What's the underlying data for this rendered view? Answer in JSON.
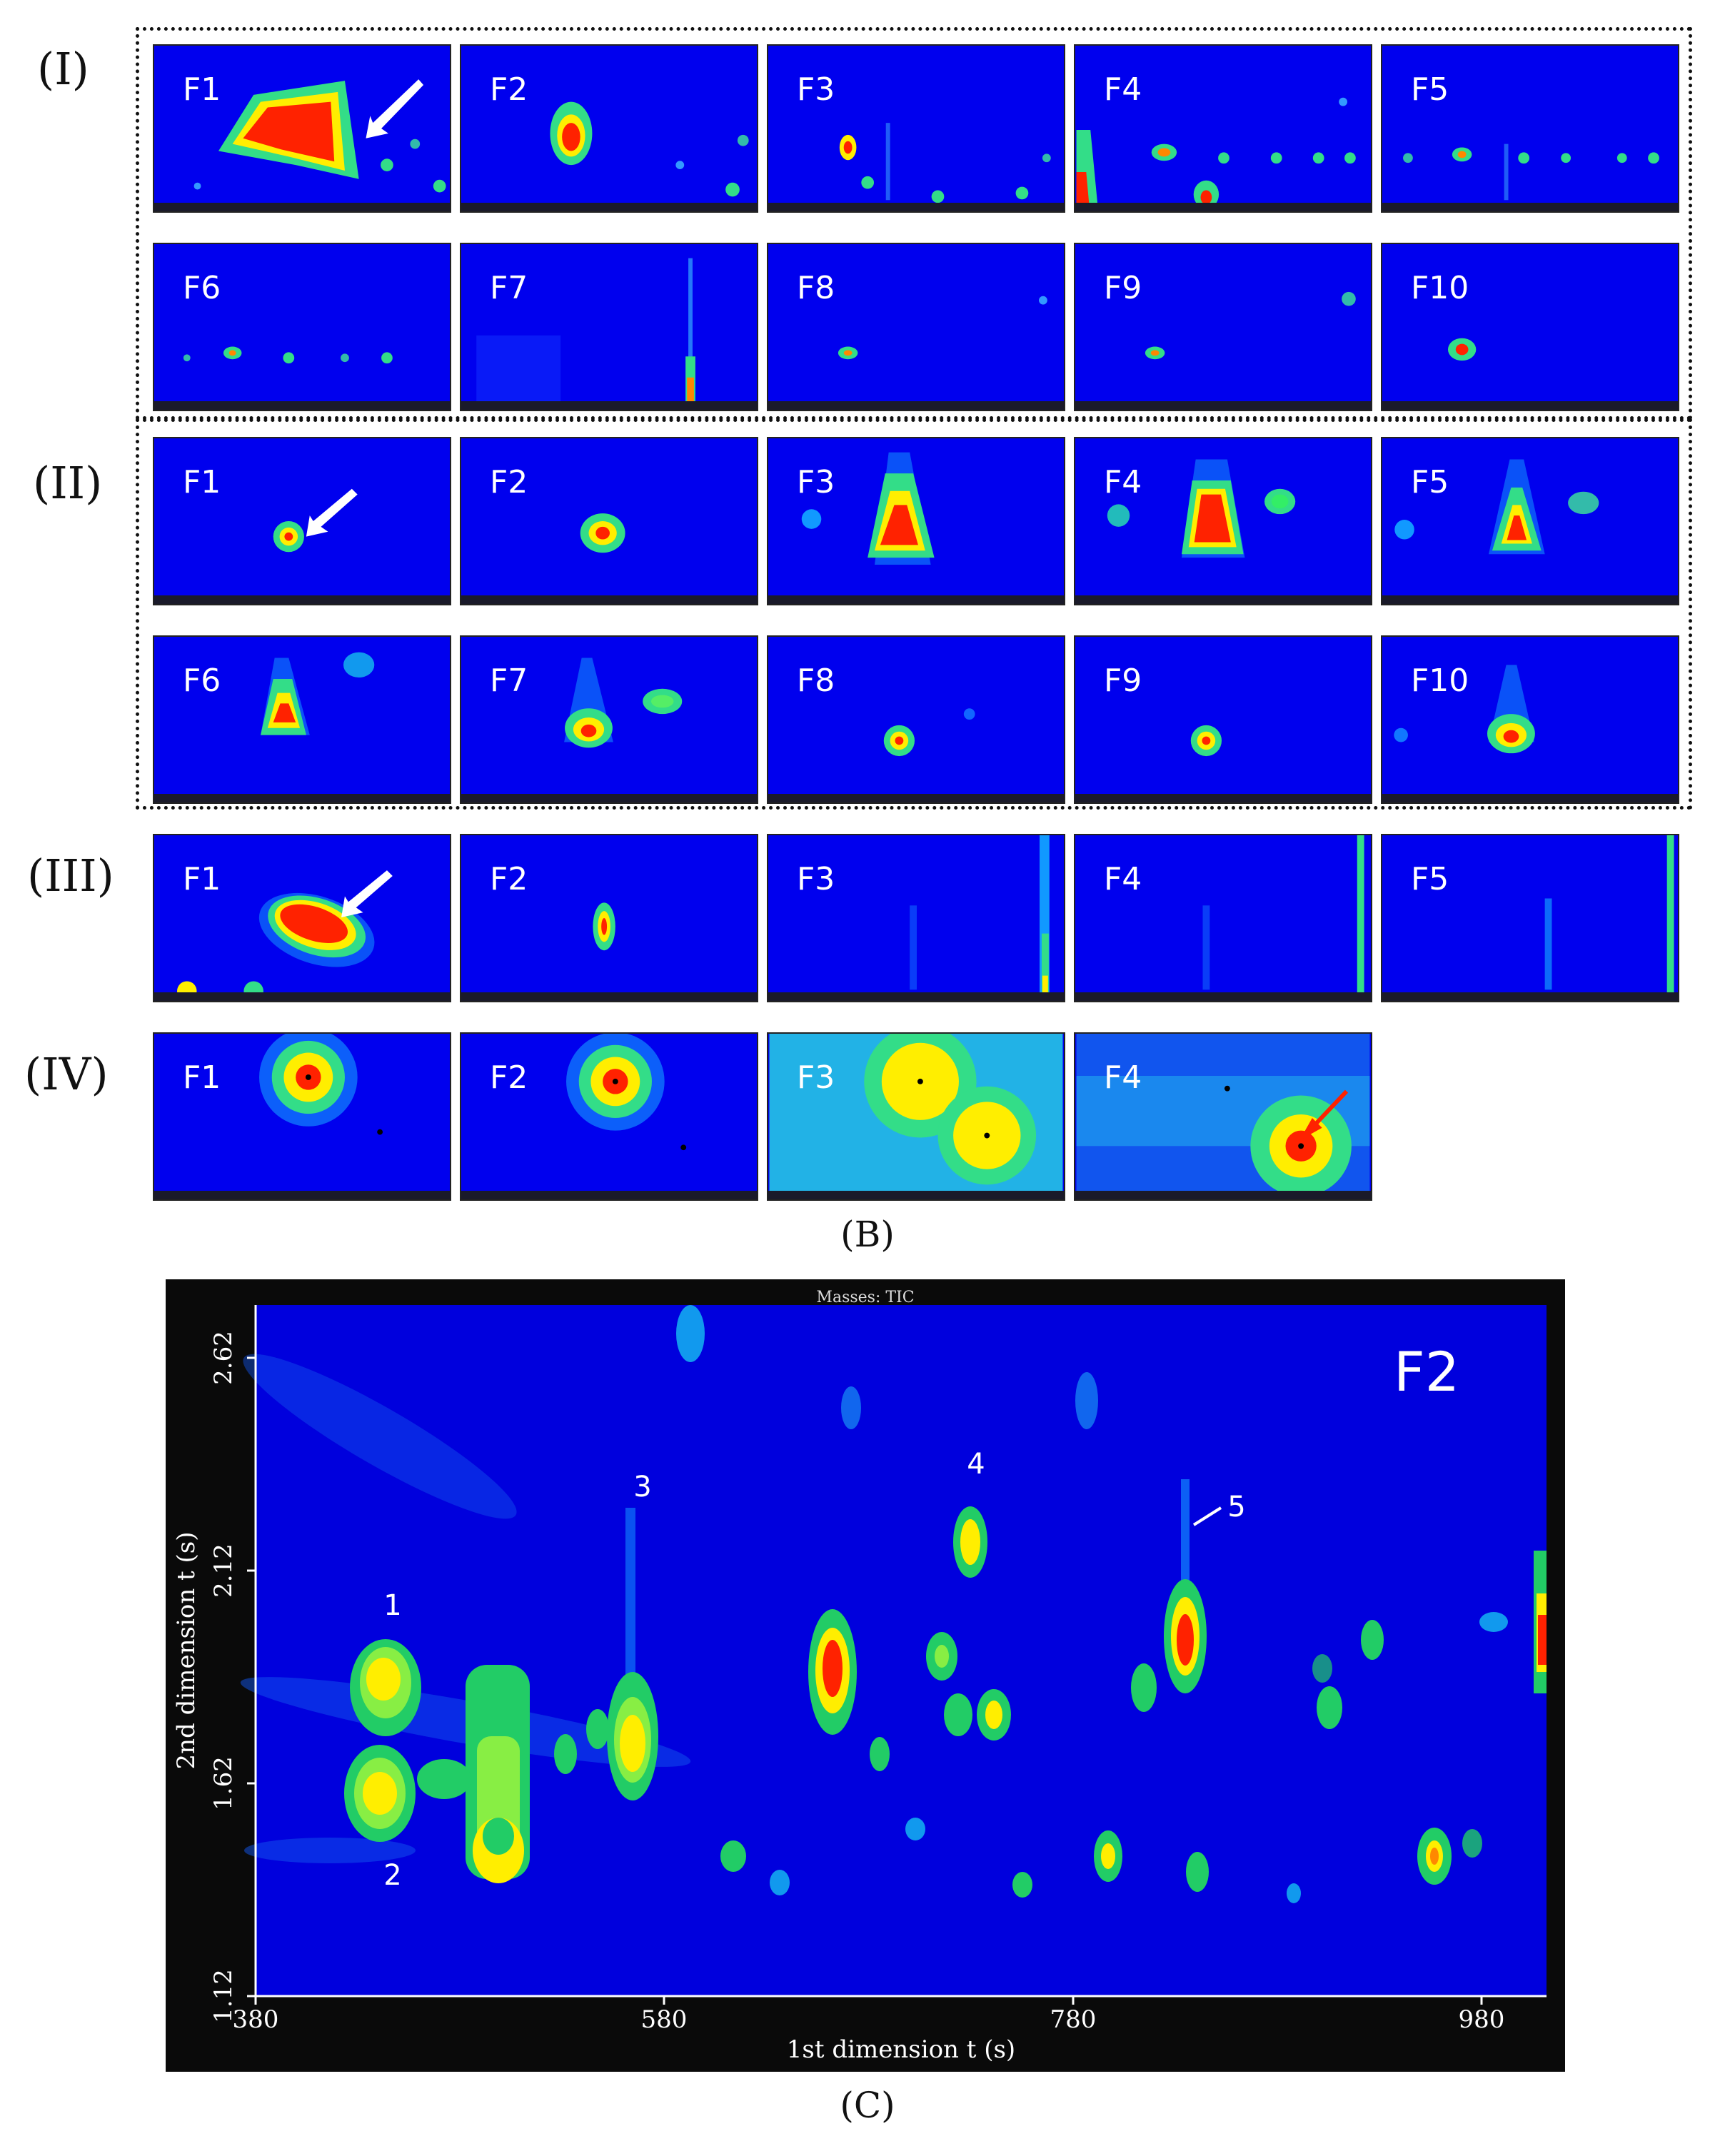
{
  "figure_B": {
    "row_labels": [
      "(I)",
      "(II)",
      "(III)",
      "(IV)"
    ],
    "rows": [
      {
        "row": "I",
        "panels": [
          "F1",
          "F2",
          "F3",
          "F4",
          "F5"
        ]
      },
      {
        "row": "I",
        "panels": [
          "F6",
          "F7",
          "F8",
          "F9",
          "F10"
        ]
      },
      {
        "row": "II",
        "panels": [
          "F1",
          "F2",
          "F3",
          "F4",
          "F5"
        ]
      },
      {
        "row": "II",
        "panels": [
          "F6",
          "F7",
          "F8",
          "F9",
          "F10"
        ]
      },
      {
        "row": "III",
        "panels": [
          "F1",
          "F2",
          "F3",
          "F4",
          "F5"
        ]
      },
      {
        "row": "IV",
        "panels": [
          "F1",
          "F2",
          "F3",
          "F4"
        ]
      }
    ],
    "caption": "(B)"
  },
  "figure_C": {
    "header": "Masses: TIC",
    "panel_label": "F2",
    "xlabel": "1st dimension t (s)",
    "ylabel": "2nd dimension t (s)",
    "x_ticks": [
      "380",
      "580",
      "780",
      "980"
    ],
    "y_ticks": [
      "2.62",
      "2.12",
      "1.62",
      "1.12"
    ],
    "peak_labels": [
      "1",
      "2",
      "3",
      "4",
      "5"
    ],
    "caption": "(C)"
  },
  "colors": {
    "background": "#0000ee",
    "peak_high": "#ff2200",
    "peak_mid": "#ffee00",
    "peak_low": "#00dd44"
  }
}
